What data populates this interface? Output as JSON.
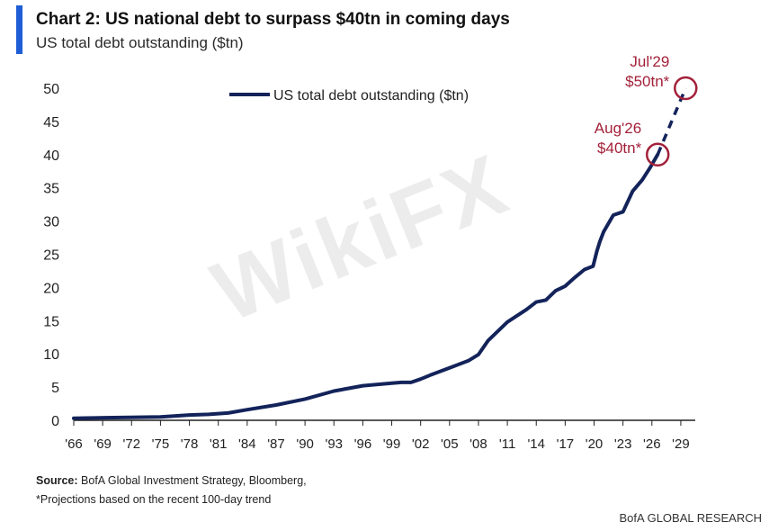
{
  "header": {
    "title": "Chart 2: US national debt to surpass $40tn in coming days",
    "subtitle": "US total debt outstanding ($tn)"
  },
  "footer": {
    "source_label": "Source:",
    "source_text": "BofA Global Investment Strategy, Bloomberg,",
    "footnote": "*Projections based on the recent 100-day trend",
    "brand": "BofA GLOBAL RESEARCH"
  },
  "watermark": "WikiFX",
  "colors": {
    "accent": "#1f5dd6",
    "series": "#13235a",
    "annotation": "#a3213a",
    "axis": "#222222"
  },
  "chart_data": {
    "type": "line",
    "title": "",
    "xlabel": "",
    "ylabel": "",
    "ylim": [
      0,
      50
    ],
    "xlim": [
      1966,
      2030.5
    ],
    "yticks": [
      0,
      5,
      10,
      15,
      20,
      25,
      30,
      35,
      40,
      45,
      50
    ],
    "xtick_years": [
      1966,
      1969,
      1972,
      1975,
      1978,
      1981,
      1984,
      1987,
      1990,
      1993,
      1996,
      1999,
      2002,
      2005,
      2008,
      2011,
      2014,
      2017,
      2020,
      2023,
      2026,
      2029
    ],
    "xtick_labels": [
      "'66",
      "'69",
      "'72",
      "'75",
      "'78",
      "'81",
      "'84",
      "'87",
      "'90",
      "'93",
      "'96",
      "'99",
      "'02",
      "'05",
      "'08",
      "'11",
      "'14",
      "'17",
      "'20",
      "'23",
      "'26",
      "'29"
    ],
    "legend": {
      "label": "US total debt outstanding ($tn)",
      "position": "top-center"
    },
    "series": [
      {
        "name": "US total debt outstanding ($tn)",
        "style": "solid",
        "x": [
          1966,
          1970,
          1975,
          1978,
          1980,
          1982,
          1984,
          1987,
          1990,
          1993,
          1996,
          1999,
          2000,
          2001,
          2002,
          2003,
          2005,
          2007,
          2008,
          2009,
          2011,
          2013,
          2014,
          2015,
          2016,
          2017,
          2018,
          2019,
          2019.9,
          2020.3,
          2020.6,
          2021,
          2022,
          2023,
          2024,
          2025,
          2025.8,
          2026.6
        ],
        "values": [
          0.3,
          0.4,
          0.5,
          0.8,
          0.9,
          1.1,
          1.6,
          2.3,
          3.2,
          4.4,
          5.2,
          5.6,
          5.7,
          5.7,
          6.2,
          6.8,
          7.9,
          9.0,
          9.9,
          12.0,
          14.8,
          16.7,
          17.8,
          18.1,
          19.5,
          20.2,
          21.5,
          22.7,
          23.2,
          25.5,
          26.9,
          28.4,
          30.9,
          31.4,
          34.5,
          36.2,
          38.0,
          40.0
        ]
      },
      {
        "name": "Projection",
        "style": "dashed",
        "x": [
          2026.6,
          2029.5
        ],
        "values": [
          40.0,
          50.0
        ]
      }
    ],
    "annotations": [
      {
        "x": 2026.6,
        "y": 40,
        "line1": "Aug'26",
        "line2": "$40tn*"
      },
      {
        "x": 2029.5,
        "y": 50,
        "line1": "Jul'29",
        "line2": "$50tn*"
      }
    ]
  }
}
